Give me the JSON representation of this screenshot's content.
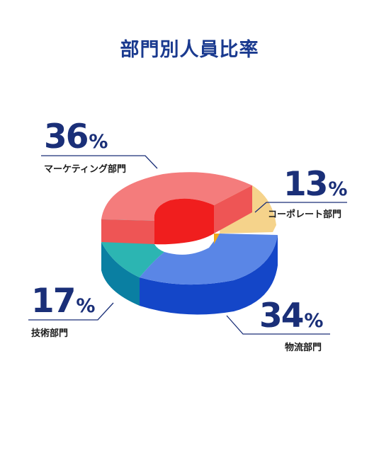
{
  "title": "部門別人員比率",
  "chart_data": {
    "type": "pie",
    "style": "3d-donut",
    "title": "部門別人員比率",
    "unit": "%",
    "slices": [
      {
        "label": "マーケティング部門",
        "value": 36,
        "color": "#f47c7c",
        "side_color": "#ee5555"
      },
      {
        "label": "コーポレート部門",
        "value": 13,
        "color": "#f5d38b",
        "side_color": "#f0a81a"
      },
      {
        "label": "物流部門",
        "value": 34,
        "color": "#5a86e6",
        "side_color": "#1446c8"
      },
      {
        "label": "技術部門",
        "value": 17,
        "color": "#2cb5b2",
        "side_color": "#0a7fa2"
      }
    ]
  },
  "labels": {
    "marketing": {
      "num": "36",
      "sign": "%",
      "name": "マーケティング部門"
    },
    "corporate": {
      "num": "13",
      "sign": "%",
      "name": "コーポレート部門"
    },
    "logistics": {
      "num": "34",
      "sign": "%",
      "name": "物流部門"
    },
    "tech": {
      "num": "17",
      "sign": "%",
      "name": "技術部門"
    }
  }
}
